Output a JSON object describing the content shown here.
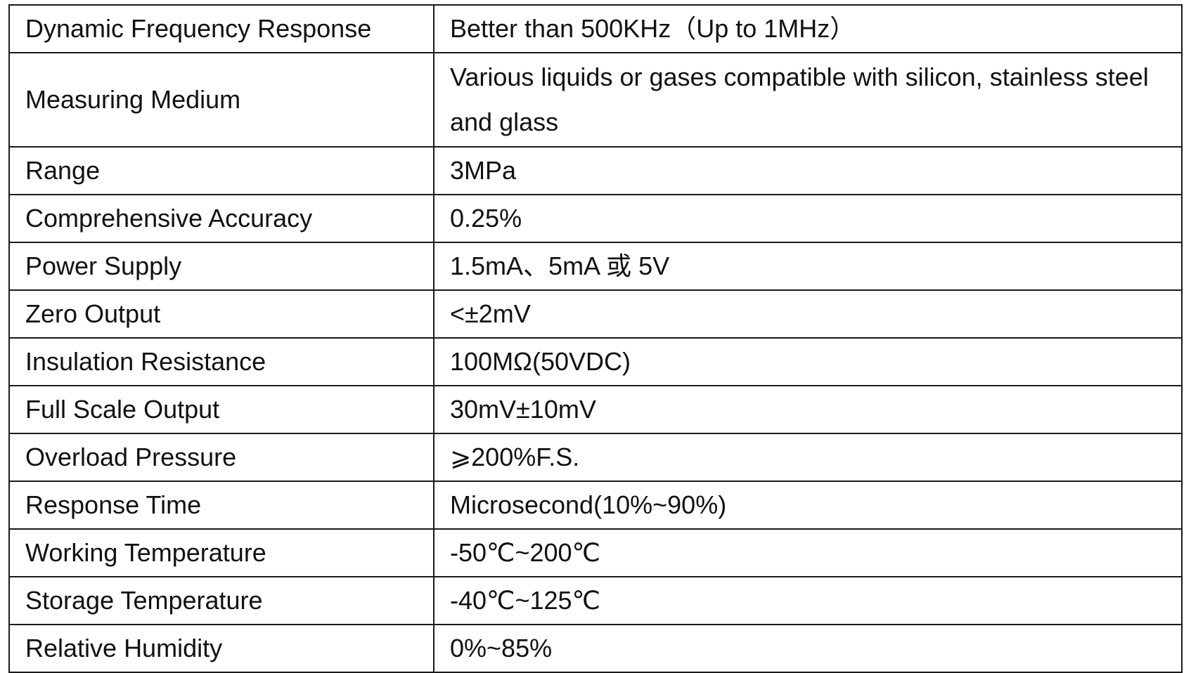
{
  "spec_table": {
    "rows": [
      {
        "parameter": "Dynamic Frequency Response",
        "value": "Better than 500KHz（Up to 1MHz）"
      },
      {
        "parameter": "Measuring Medium",
        "value": "Various liquids or gases compatible with silicon, stainless steel and glass"
      },
      {
        "parameter": "Range",
        "value": "3MPa"
      },
      {
        "parameter": "Comprehensive Accuracy",
        "value": "0.25%"
      },
      {
        "parameter": "Power Supply",
        "value": "1.5mA、5mA 或 5V"
      },
      {
        "parameter": "Zero Output",
        "value": "<±2mV"
      },
      {
        "parameter": "Insulation Resistance",
        "value": "100MΩ(50VDC)"
      },
      {
        "parameter": "Full Scale Output",
        "value": "30mV±10mV"
      },
      {
        "parameter": "Overload Pressure",
        "value": "⩾200%F.S."
      },
      {
        "parameter": "Response Time",
        "value": "Microsecond(10%~90%)"
      },
      {
        "parameter": "Working Temperature",
        "value": "-50℃~200℃"
      },
      {
        "parameter": "Storage Temperature",
        "value": "-40℃~125℃"
      },
      {
        "parameter": "Relative Humidity",
        "value": "0%~85%"
      }
    ]
  }
}
